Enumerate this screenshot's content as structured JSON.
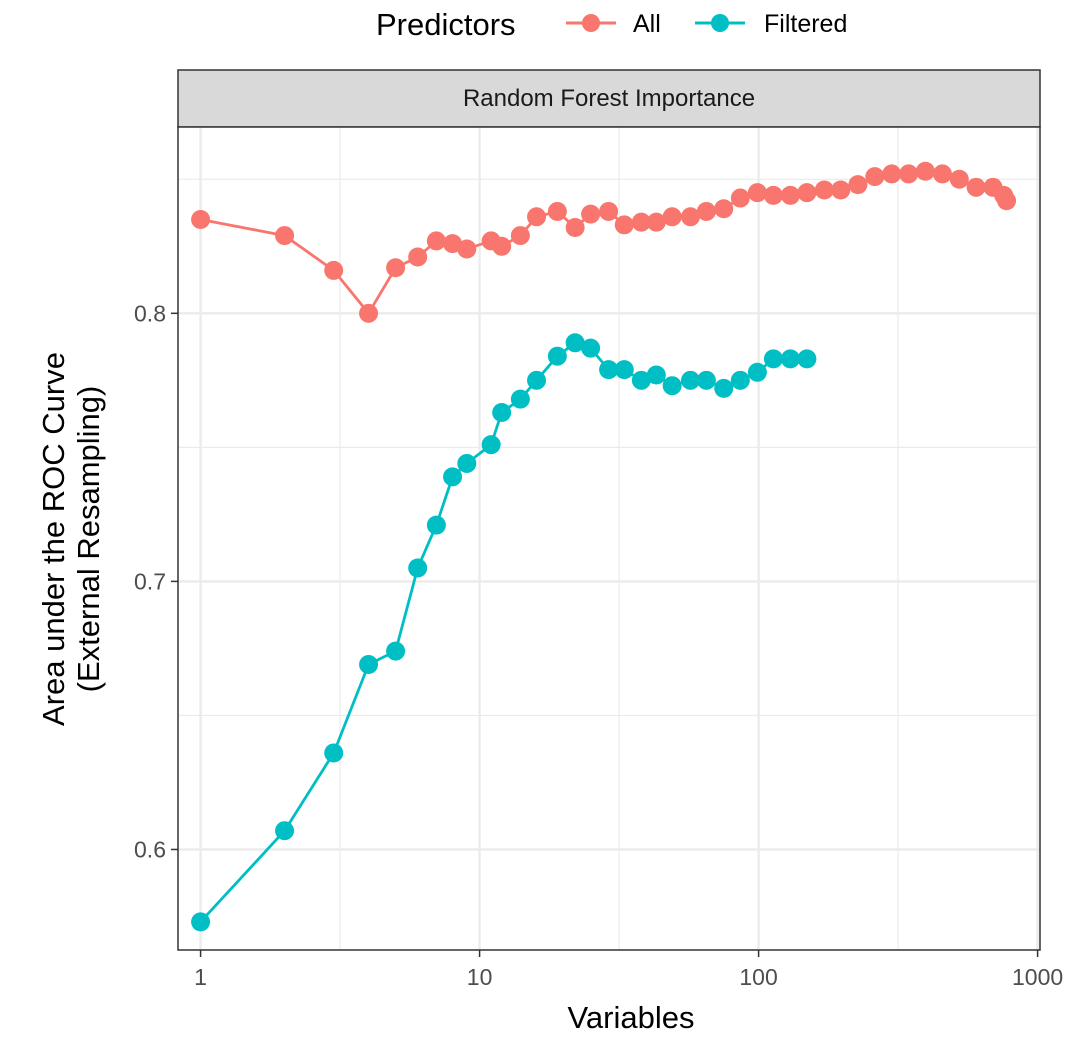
{
  "chart_data": {
    "type": "line",
    "facet": "Random Forest Importance",
    "xlabel": "Variables",
    "ylabel_line1": "Area under the ROC Curve",
    "ylabel_line2": "(External Resampling)",
    "x_scale": "log10",
    "xlim": [
      0.83,
      1020
    ],
    "ylim": [
      0.5625,
      0.8695
    ],
    "x_ticks": [
      1,
      10,
      100,
      1000
    ],
    "x_tick_labels": [
      "1",
      "10",
      "100",
      "1000"
    ],
    "x_minor": [
      3.162,
      31.62,
      316.2
    ],
    "y_ticks": [
      0.6,
      0.7,
      0.8
    ],
    "y_tick_labels": [
      "0.6",
      "0.7",
      "0.8"
    ],
    "y_minor": [
      0.65,
      0.75,
      0.85
    ],
    "grid": true,
    "legend": {
      "title": "Predictors",
      "position": "top",
      "entries": [
        "All",
        "Filtered"
      ]
    },
    "series": [
      {
        "name": "All",
        "color": "#F8766D",
        "x": [
          1,
          2,
          3,
          4,
          5,
          6,
          7,
          8,
          9,
          11,
          12,
          14,
          16,
          19,
          22,
          25,
          29,
          33,
          38,
          43,
          49,
          57,
          65,
          75,
          86,
          99,
          113,
          130,
          149,
          172,
          197,
          227,
          261,
          300,
          345,
          396,
          456,
          524,
          602,
          692,
          756,
          774
        ],
        "values": [
          0.835,
          0.829,
          0.816,
          0.8,
          0.817,
          0.821,
          0.827,
          0.826,
          0.824,
          0.827,
          0.825,
          0.829,
          0.836,
          0.838,
          0.832,
          0.837,
          0.838,
          0.833,
          0.834,
          0.834,
          0.836,
          0.836,
          0.838,
          0.839,
          0.843,
          0.845,
          0.844,
          0.844,
          0.845,
          0.846,
          0.846,
          0.848,
          0.851,
          0.852,
          0.852,
          0.853,
          0.852,
          0.85,
          0.847,
          0.847,
          0.844,
          0.842
        ]
      },
      {
        "name": "Filtered",
        "color": "#00BFC4",
        "x": [
          1,
          2,
          3,
          4,
          5,
          6,
          7,
          8,
          9,
          11,
          12,
          14,
          16,
          19,
          22,
          25,
          29,
          33,
          38,
          43,
          49,
          57,
          65,
          75,
          86,
          99,
          113,
          130,
          149
        ],
        "values": [
          0.573,
          0.607,
          0.636,
          0.669,
          0.674,
          0.705,
          0.721,
          0.739,
          0.744,
          0.751,
          0.763,
          0.768,
          0.775,
          0.784,
          0.789,
          0.787,
          0.779,
          0.779,
          0.775,
          0.777,
          0.773,
          0.775,
          0.775,
          0.772,
          0.775,
          0.778,
          0.783,
          0.783,
          0.783
        ]
      }
    ]
  }
}
